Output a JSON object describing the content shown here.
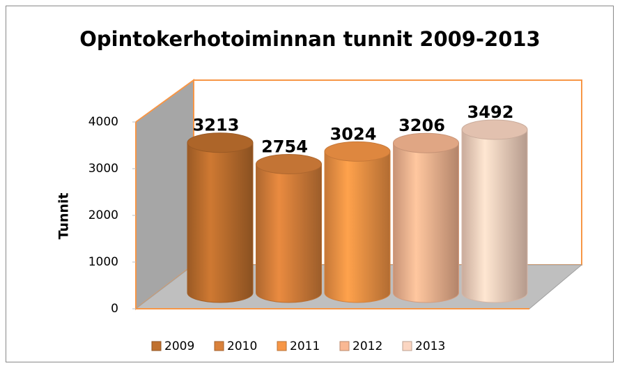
{
  "chart_data": {
    "type": "bar",
    "title": "Opintokerhotoiminnan tunnit 2009-2013",
    "y_label": "Tunnit",
    "series": [
      {
        "name": "2009",
        "color": "#c0702e",
        "values": [
          3213
        ]
      },
      {
        "name": "2010",
        "color": "#d9813b",
        "values": [
          2754
        ]
      },
      {
        "name": "2011",
        "color": "#f79646",
        "values": [
          3024
        ]
      },
      {
        "name": "2012",
        "color": "#f9b893",
        "values": [
          3206
        ]
      },
      {
        "name": "2013",
        "color": "#fbd6c2",
        "values": [
          3492
        ]
      }
    ],
    "ylim": [
      0,
      4000
    ],
    "yticks": [
      0,
      1000,
      2000,
      3000,
      4000
    ],
    "legend": "bottom"
  }
}
